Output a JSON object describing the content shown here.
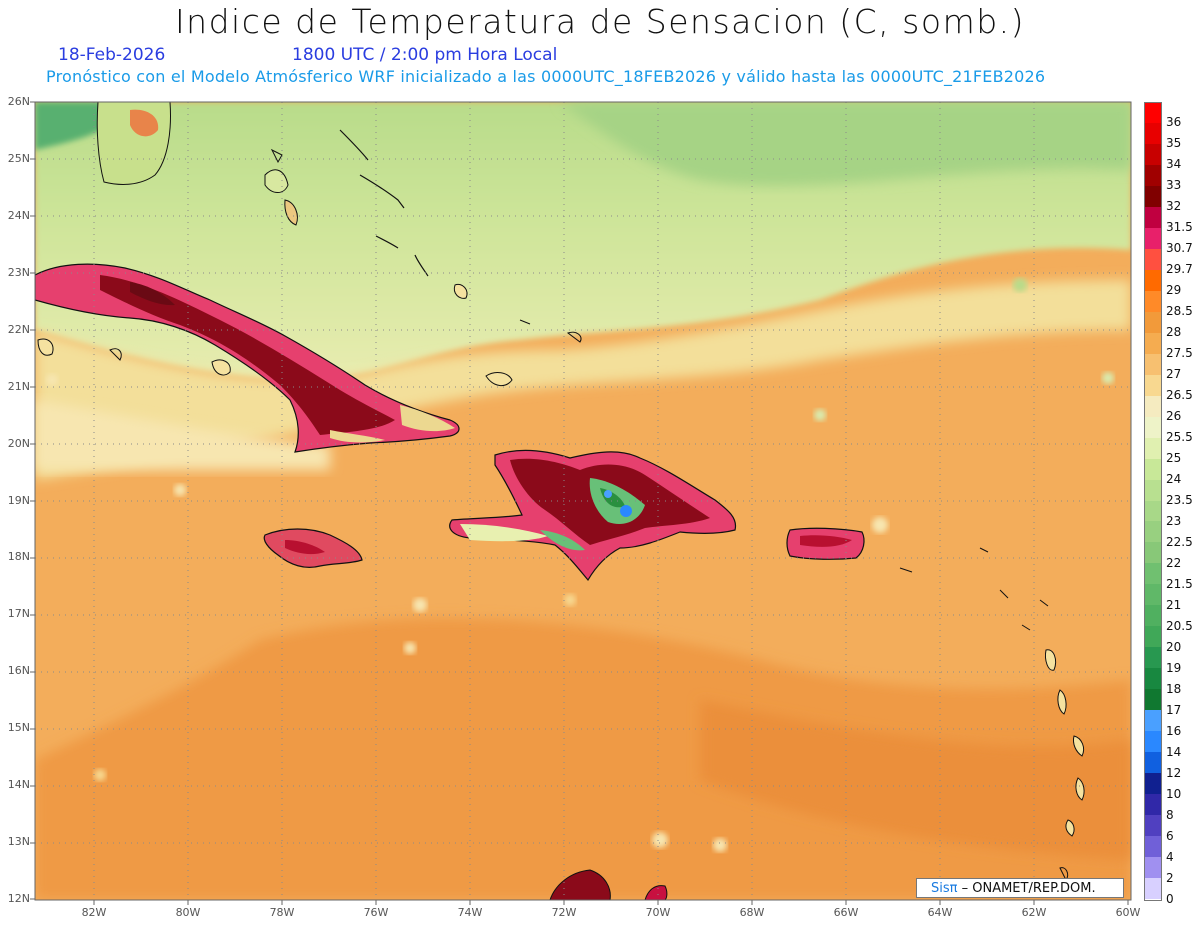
{
  "title": "Indice de Temperatura de Sensacion (C, somb.)",
  "date": "18-Feb-2026",
  "time_label": "1800 UTC / 2:00 pm Hora Local",
  "forecast_note": "Pronóstico con el Modelo Atmósferico WRF inicializado a las 0000UTC_18FEB2026 y válido hasta las  0000UTC_21FEB2026",
  "credit": {
    "brand": "Sisπ",
    "text": "– ONAMET/REP.DOM."
  },
  "lat_labels": [
    "26N",
    "25N",
    "24N",
    "23N",
    "22N",
    "21N",
    "20N",
    "19N",
    "18N",
    "17N",
    "16N",
    "15N",
    "14N",
    "13N",
    "12N"
  ],
  "lon_labels": [
    "82W",
    "80W",
    "78W",
    "76W",
    "74W",
    "72W",
    "70W",
    "68W",
    "66W",
    "64W",
    "62W",
    "60W"
  ],
  "colorbar": {
    "labels": [
      "36",
      "35",
      "34",
      "33",
      "32",
      "31.5",
      "30.7",
      "29.7",
      "29",
      "28.5",
      "28",
      "27.5",
      "27",
      "26.5",
      "26",
      "25.5",
      "25",
      "24",
      "23.5",
      "23",
      "22.5",
      "22",
      "21.5",
      "21",
      "20.5",
      "20",
      "19",
      "18",
      "17",
      "16",
      "14",
      "12",
      "10",
      "8",
      "6",
      "4",
      "2",
      "0"
    ],
    "colors": [
      "#ff0000",
      "#e80000",
      "#c80000",
      "#a00000",
      "#800000",
      "#c00040",
      "#e8206a",
      "#ff5040",
      "#ff6a00",
      "#ff8a28",
      "#f29a3a",
      "#f5ac50",
      "#f7c070",
      "#f8d890",
      "#f5ebc0",
      "#eef3c8",
      "#e0f0b0",
      "#c8e898",
      "#b8e090",
      "#a8d888",
      "#98d080",
      "#88c878",
      "#70c070",
      "#60b868",
      "#50b060",
      "#40a858",
      "#289850",
      "#188840",
      "#107830",
      "#4aa0ff",
      "#2a88ff",
      "#1060e0",
      "#102090",
      "#3028a8",
      "#5040c0",
      "#7060d8",
      "#a090f0",
      "#d8d0ff"
    ]
  },
  "map": {
    "colors": {
      "ocean": "#f3ad5b",
      "ocean_deep": "#ec9a40",
      "north": "#c8e08c",
      "north_far": "#a8d386",
      "band": "#f5e2a0",
      "land_hot": "#8b0a1a",
      "land_warm": "#e23a6d",
      "land_orange": "#f07830",
      "mountain": "#68c078",
      "cold": "#2a88ff"
    },
    "grid": "dotted"
  }
}
